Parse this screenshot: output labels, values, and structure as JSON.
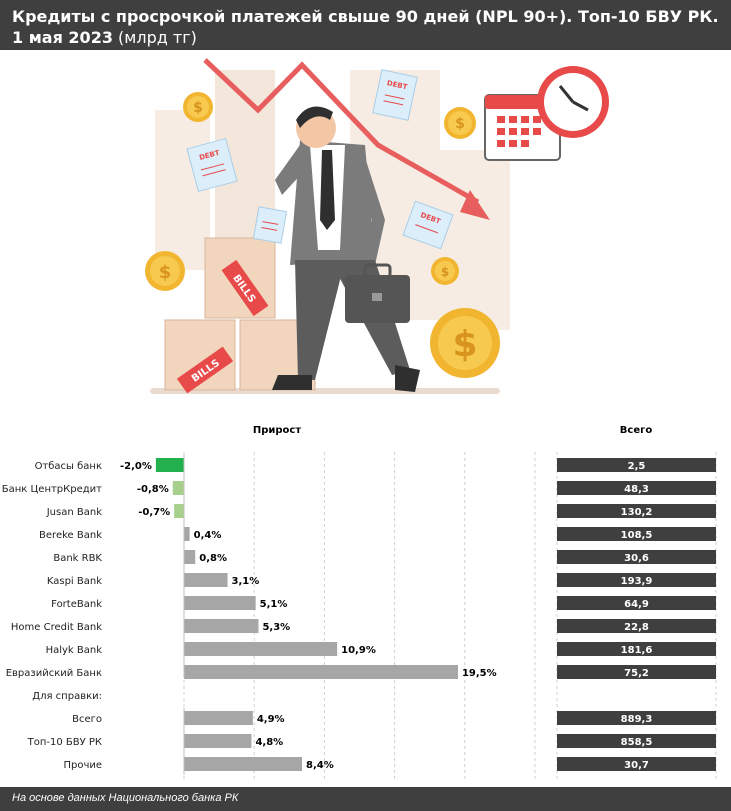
{
  "title": {
    "line1": "Кредиты с просрочкой платежей свыше 90 дней (NPL 90+). Топ-10 БВУ РК.",
    "line2_bold": "1 мая 2023",
    "line2_normal": " (млрд тг)"
  },
  "illustration": {
    "debt_label": "DEBT",
    "bills_label": "BILLS",
    "icons": [
      "down-trend-arrow-icon",
      "calendar-icon",
      "clock-icon",
      "coin-icon",
      "briefcase-icon"
    ]
  },
  "chart_data": {
    "type": "bar",
    "column_headers": {
      "growth": "Прирост",
      "total": "Всего"
    },
    "section_label": "Для справки:",
    "categories": [
      "Отбасы банк",
      "Банк ЦентрКредит",
      "Jusan Bank",
      "Bereke Bank",
      "Bank RBK",
      "Kaspi Bank",
      "ForteBank",
      "Home Credit Bank",
      "Halyk Bank",
      "Евразийский Банк"
    ],
    "growth": [
      -2.0,
      -0.8,
      -0.7,
      0.4,
      0.8,
      3.1,
      5.1,
      5.3,
      10.9,
      19.5
    ],
    "growth_labels": [
      "-2,0%",
      "-0,8%",
      "-0,7%",
      "0,4%",
      "0,8%",
      "3,1%",
      "5,1%",
      "5,3%",
      "10,9%",
      "19,5%"
    ],
    "total": [
      2.5,
      48.3,
      130.2,
      108.5,
      30.6,
      193.9,
      64.9,
      22.8,
      181.6,
      75.2
    ],
    "total_labels": [
      "2,5",
      "48,3",
      "130,2",
      "108,5",
      "30,6",
      "193,9",
      "64,9",
      "22,8",
      "181,6",
      "75,2"
    ],
    "reference_categories": [
      "Всего",
      "Топ-10 БВУ РК",
      "Прочие"
    ],
    "reference_growth": [
      4.9,
      4.8,
      8.4
    ],
    "reference_growth_labels": [
      "4,9%",
      "4,8%",
      "8,4%"
    ],
    "reference_total": [
      889.3,
      858.5,
      30.7
    ],
    "reference_total_labels": [
      "889,3",
      "858,5",
      "30,7"
    ],
    "colors": {
      "negative_large": "#22b14c",
      "negative": "#a8d08d",
      "positive": "#a6a6a6",
      "total_bar": "#3f3f3f"
    }
  },
  "footer": "На основе данных Национального банка РК"
}
